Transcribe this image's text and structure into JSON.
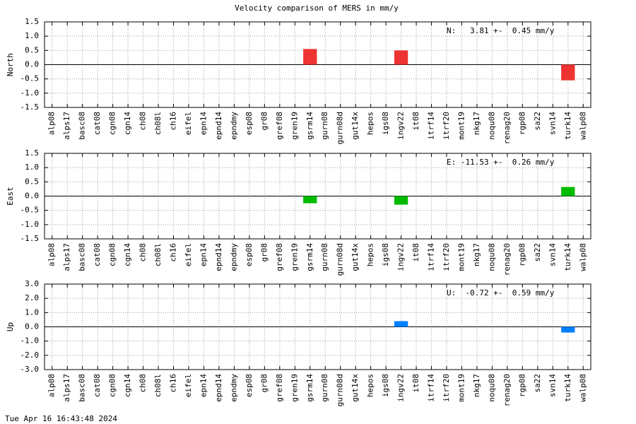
{
  "title": "Velocity comparison of MERS in mm/y",
  "timestamp": "Tue Apr 16 16:43:48 2024",
  "chart_data": [
    {
      "type": "bar",
      "ylabel": "North",
      "annotation": "N:   3.81 +-  0.45 mm/y",
      "color": "#ee3333",
      "grid": true,
      "categories": [
        "alp08",
        "alps17",
        "basc08",
        "cat08",
        "cgn08",
        "cgn14",
        "ch08",
        "ch08l",
        "ch16",
        "eifel",
        "epn14",
        "epnd14",
        "epndmy",
        "esp08",
        "gr08",
        "gref08",
        "gren19",
        "gsrm14",
        "gurn08",
        "gurn08d",
        "gut14x",
        "hepos",
        "igs08",
        "ingv22",
        "it08",
        "itrf14",
        "itrf20",
        "mont19",
        "nkg17",
        "noqu08",
        "renag20",
        "rgp08",
        "sa22",
        "svn14",
        "turk14",
        "walp08"
      ],
      "values": [
        null,
        null,
        null,
        null,
        null,
        null,
        null,
        null,
        null,
        null,
        null,
        null,
        null,
        null,
        null,
        null,
        null,
        0.55,
        null,
        null,
        null,
        null,
        null,
        0.5,
        null,
        null,
        null,
        null,
        null,
        null,
        null,
        null,
        null,
        null,
        -0.55,
        null
      ],
      "ylim": [
        -1.5,
        1.5
      ],
      "yticks": [
        -1.5,
        {
          "value": -1.0,
          "label": "-1.0"
        },
        -0.5,
        {
          "value": 0,
          "label": "0.0"
        },
        0.5,
        {
          "value": 1.0,
          "label": "1.0"
        },
        1.5
      ]
    },
    {
      "type": "bar",
      "ylabel": "East",
      "annotation": "E: -11.53 +-  0.26 mm/y",
      "color": "#00bb00",
      "grid": true,
      "categories": [
        "alp08",
        "alps17",
        "basc08",
        "cat08",
        "cgn08",
        "cgn14",
        "ch08",
        "ch08l",
        "ch16",
        "eifel",
        "epn14",
        "epnd14",
        "epndmy",
        "esp08",
        "gr08",
        "gref08",
        "gren19",
        "gsrm14",
        "gurn08",
        "gurn08d",
        "gut14x",
        "hepos",
        "igs08",
        "ingv22",
        "it08",
        "itrf14",
        "itrf20",
        "mont19",
        "nkg17",
        "noqu08",
        "renag20",
        "rgp08",
        "sa22",
        "svn14",
        "turk14",
        "walp08"
      ],
      "values": [
        null,
        null,
        null,
        null,
        null,
        null,
        null,
        null,
        null,
        null,
        null,
        null,
        null,
        null,
        null,
        null,
        null,
        -0.25,
        null,
        null,
        null,
        null,
        null,
        -0.3,
        null,
        null,
        null,
        null,
        null,
        null,
        null,
        null,
        null,
        null,
        0.32,
        null
      ],
      "ylim": [
        -1.5,
        1.5
      ],
      "yticks": [
        -1.5,
        {
          "value": -1.0,
          "label": "-1.0"
        },
        -0.5,
        {
          "value": 0,
          "label": "0.0"
        },
        0.5,
        {
          "value": 1.0,
          "label": "1.0"
        },
        1.5
      ]
    },
    {
      "type": "bar",
      "ylabel": "Up",
      "annotation": "U:  -0.72 +-  0.59 mm/y",
      "color": "#0080ff",
      "grid": true,
      "categories": [
        "alp08",
        "alps17",
        "basc08",
        "cat08",
        "cgn08",
        "cgn14",
        "ch08",
        "ch08l",
        "ch16",
        "eifel",
        "epn14",
        "epnd14",
        "epndmy",
        "esp08",
        "gr08",
        "gref08",
        "gren19",
        "gsrm14",
        "gurn08",
        "gurn08d",
        "gut14x",
        "hepos",
        "igs08",
        "ingv22",
        "it08",
        "itrf14",
        "itrf20",
        "mont19",
        "nkg17",
        "noqu08",
        "renag20",
        "rgp08",
        "sa22",
        "svn14",
        "turk14",
        "walp08"
      ],
      "values": [
        null,
        null,
        null,
        null,
        null,
        null,
        null,
        null,
        null,
        null,
        null,
        null,
        null,
        null,
        null,
        null,
        null,
        null,
        null,
        null,
        null,
        null,
        null,
        0.4,
        null,
        null,
        null,
        null,
        null,
        null,
        null,
        null,
        null,
        null,
        -0.4,
        null
      ],
      "ylim": [
        -3,
        3
      ],
      "yticks": [
        {
          "value": -3,
          "label": "-3.0"
        },
        {
          "value": -2,
          "label": "-2.0"
        },
        {
          "value": -1,
          "label": "-1.0"
        },
        {
          "value": 0,
          "label": "0.0"
        },
        {
          "value": 1,
          "label": "1.0"
        },
        {
          "value": 2,
          "label": "2.0"
        },
        {
          "value": 3,
          "label": "3.0"
        }
      ]
    }
  ]
}
